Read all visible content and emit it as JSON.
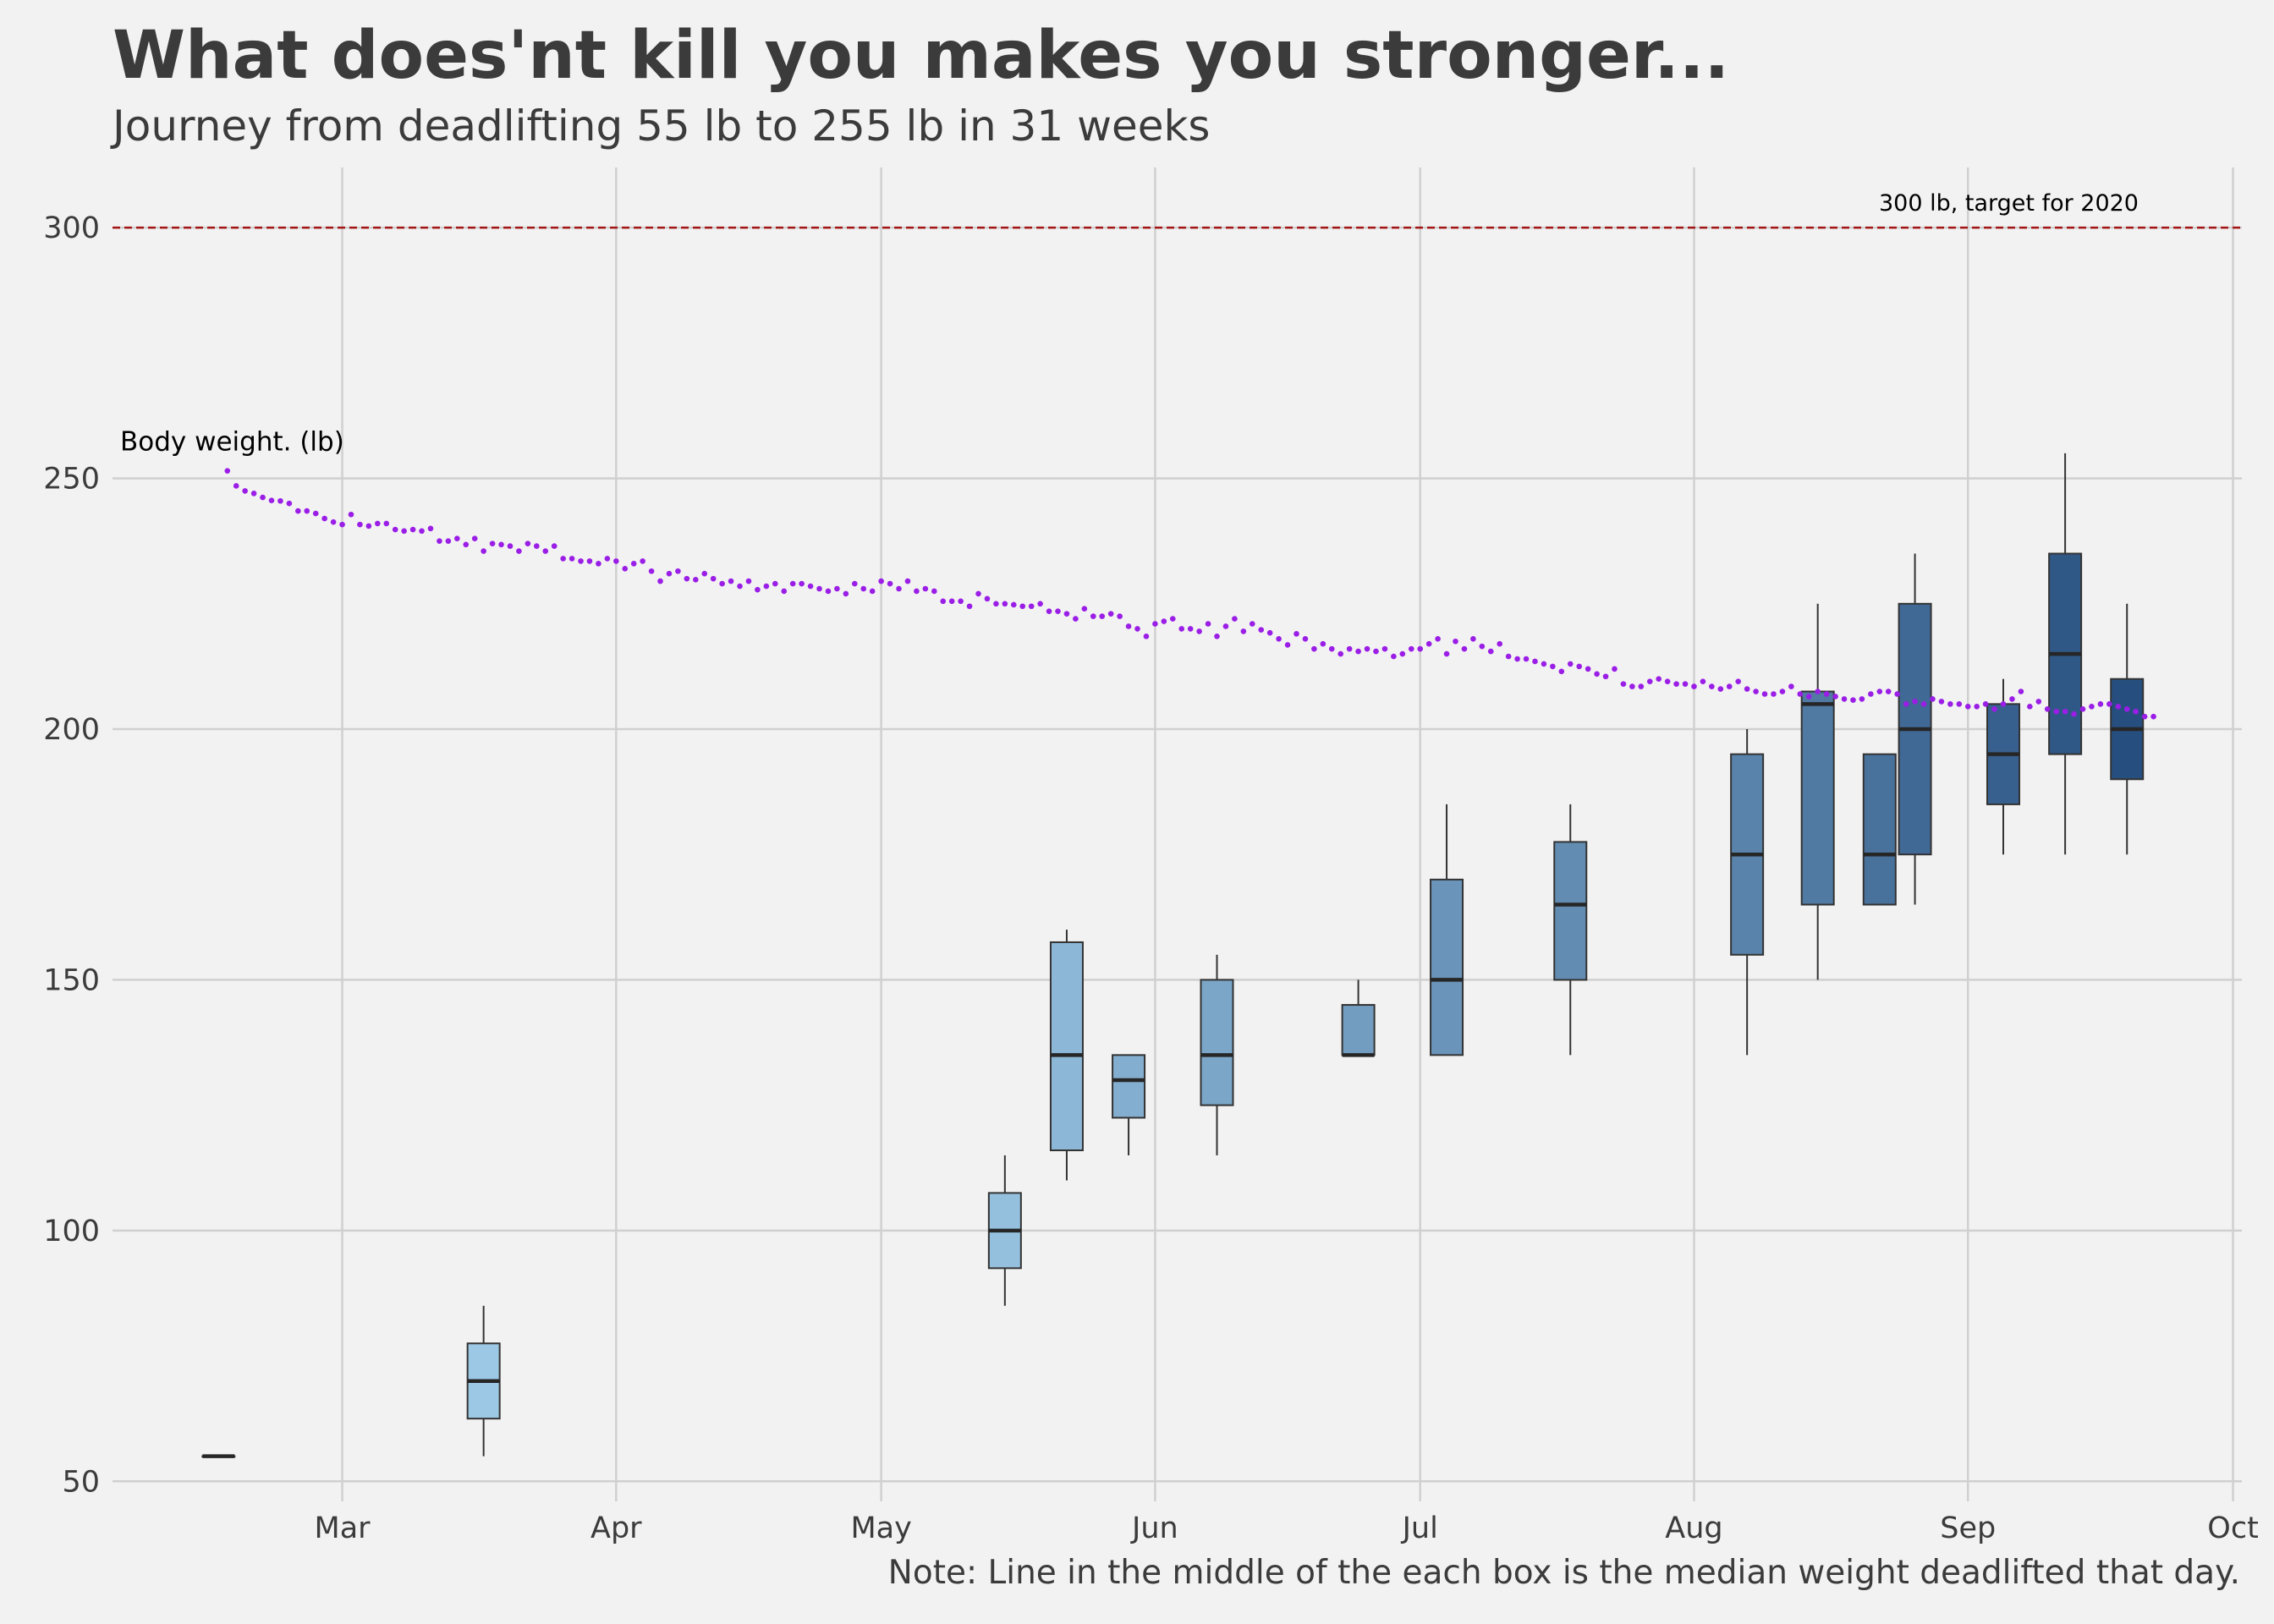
{
  "chart_data": {
    "type": "box",
    "title": "What does'nt kill you makes you stronger...",
    "subtitle": "Journey from deadlifting 55 lb to 255 lb in 31 weeks",
    "note": "Note: Line in the middle of the each box is the median weight deadlifted that day.",
    "xlabel": "",
    "ylabel": "",
    "ylim": [
      46,
      312
    ],
    "xlim": [
      "2020-02-04",
      "2020-10-02"
    ],
    "y_ticks": [
      50,
      100,
      150,
      200,
      250,
      300
    ],
    "x_ticks": [
      {
        "date": "2020-03-01",
        "label": "Mar"
      },
      {
        "date": "2020-04-01",
        "label": "Apr"
      },
      {
        "date": "2020-05-01",
        "label": "May"
      },
      {
        "date": "2020-06-01",
        "label": "Jun"
      },
      {
        "date": "2020-07-01",
        "label": "Jul"
      },
      {
        "date": "2020-08-01",
        "label": "Aug"
      },
      {
        "date": "2020-09-01",
        "label": "Sep"
      },
      {
        "date": "2020-10-01",
        "label": "Oct"
      }
    ],
    "grid": true,
    "target_line": {
      "value": 300,
      "label": "300 lb, target for 2020",
      "color": "#a31515"
    },
    "body_weight_label": "Body weight. (lb)",
    "body_weight_color": "#9a1ee6",
    "box_color_light": "#a6d1ec",
    "box_color_dark": "#264f7f",
    "boxes": [
      {
        "date": "2020-02-16",
        "min": 55,
        "q1": 55,
        "median": 55,
        "q3": 55,
        "max": 55
      },
      {
        "date": "2020-03-17",
        "min": 55,
        "q1": 62.5,
        "median": 70,
        "q3": 77.5,
        "max": 85
      },
      {
        "date": "2020-05-15",
        "min": 85,
        "q1": 92.5,
        "median": 100,
        "q3": 107.5,
        "max": 115
      },
      {
        "date": "2020-05-22",
        "min": 110,
        "q1": 116,
        "median": 135,
        "q3": 157.5,
        "max": 160
      },
      {
        "date": "2020-05-29",
        "min": 115,
        "q1": 122.5,
        "median": 130,
        "q3": 135,
        "max": 135
      },
      {
        "date": "2020-06-08",
        "min": 115,
        "q1": 125,
        "median": 135,
        "q3": 150,
        "max": 155
      },
      {
        "date": "2020-06-24",
        "min": 135,
        "q1": 135,
        "median": 135,
        "q3": 145,
        "max": 150
      },
      {
        "date": "2020-07-04",
        "min": 135,
        "q1": 135,
        "median": 150,
        "q3": 170,
        "max": 185
      },
      {
        "date": "2020-07-18",
        "min": 135,
        "q1": 150,
        "median": 165,
        "q3": 177.5,
        "max": 185
      },
      {
        "date": "2020-08-07",
        "min": 135,
        "q1": 155,
        "median": 175,
        "q3": 195,
        "max": 200
      },
      {
        "date": "2020-08-15",
        "min": 150,
        "q1": 165,
        "median": 205,
        "q3": 207.5,
        "max": 225
      },
      {
        "date": "2020-08-22",
        "min": 165,
        "q1": 165,
        "median": 175,
        "q3": 195,
        "max": 195
      },
      {
        "date": "2020-08-26",
        "min": 165,
        "q1": 175,
        "median": 200,
        "q3": 225,
        "max": 235
      },
      {
        "date": "2020-09-05",
        "min": 175,
        "q1": 185,
        "median": 195,
        "q3": 205,
        "max": 210
      },
      {
        "date": "2020-09-12",
        "min": 175,
        "q1": 195,
        "median": 215,
        "q3": 235,
        "max": 255
      },
      {
        "date": "2020-09-19",
        "min": 175,
        "q1": 190,
        "median": 200,
        "q3": 210,
        "max": 225
      }
    ],
    "body_weight_start": "2020-02-17",
    "body_weight": [
      251.5,
      248.5,
      247.5,
      247,
      246.2,
      245.6,
      245.5,
      245,
      243.5,
      243.5,
      243,
      242,
      241.3,
      240.8,
      242.8,
      240.8,
      240.5,
      241,
      241,
      239.8,
      239.5,
      239.8,
      239.5,
      240,
      237.5,
      237.5,
      238,
      236.8,
      238,
      235.5,
      237,
      236.8,
      236.5,
      235.5,
      237,
      236.5,
      235.5,
      236.5,
      234,
      234,
      233.5,
      233.5,
      233,
      234,
      233.5,
      232,
      233,
      233.5,
      231.5,
      229.5,
      231,
      231.5,
      230,
      229.8,
      231,
      230,
      229,
      229.5,
      228.5,
      229.5,
      227.8,
      228.5,
      229,
      227.5,
      229,
      229,
      228.5,
      228,
      227.5,
      228,
      227,
      229,
      228,
      227.5,
      229.5,
      229,
      228,
      229.5,
      227.5,
      228,
      227.5,
      225.5,
      225.5,
      225.5,
      224.5,
      227,
      226,
      225,
      225,
      224.8,
      224.5,
      224.5,
      225,
      223.5,
      223.5,
      223,
      222,
      224,
      222.5,
      222.5,
      223,
      222.5,
      220.5,
      220,
      218.5,
      221,
      221.5,
      222,
      220,
      220,
      219.5,
      221,
      218.5,
      220.5,
      222,
      219.5,
      221,
      219.8,
      219.2,
      218,
      216.8,
      219,
      218,
      216,
      217,
      216,
      215,
      216,
      215.5,
      216,
      215.5,
      216,
      214.5,
      215,
      216,
      216,
      217,
      218,
      215,
      217.5,
      216,
      218,
      216.5,
      215.5,
      217,
      214.5,
      214,
      214,
      213.5,
      213,
      212.5,
      211.5,
      213,
      212.5,
      212,
      211,
      210.5,
      212,
      209,
      208.5,
      208.5,
      209.5,
      210,
      209.5,
      209,
      209,
      208.5,
      209.5,
      208.5,
      208,
      208.5,
      209.5,
      208,
      207.5,
      207,
      207,
      207.5,
      208.5,
      207,
      206.5,
      207.5,
      207,
      206.5,
      206,
      205.8,
      206,
      207,
      207.5,
      207.5,
      207,
      205,
      205.5,
      205,
      206,
      205.5,
      205,
      205,
      204.5,
      204.5,
      205,
      204,
      205,
      206,
      207.5,
      204.5,
      205.5,
      204,
      203.5,
      203.5,
      203,
      204,
      204.5,
      205,
      205,
      204.5,
      204,
      203.5,
      202.5,
      202.5
    ]
  }
}
